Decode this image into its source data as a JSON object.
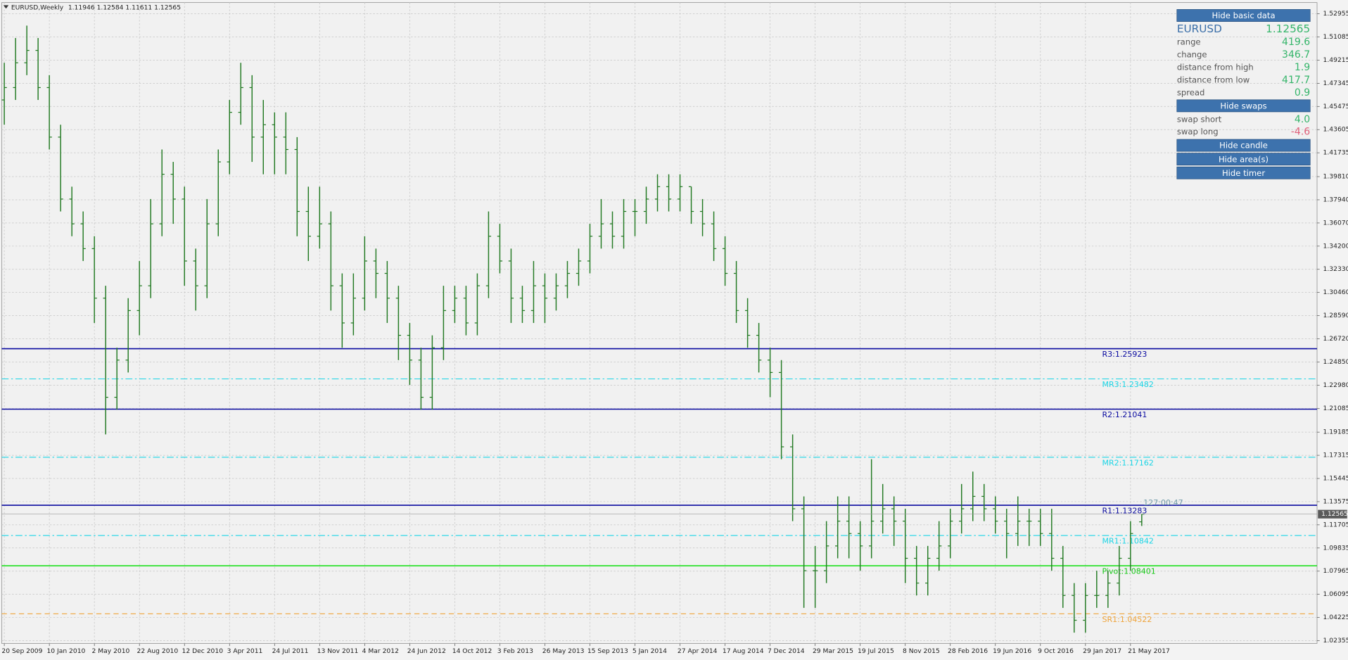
{
  "chart_data": {
    "type": "ohlc",
    "header": "EURUSD,Weekly",
    "color": "#237a23",
    "grid": true,
    "ylim": [
      1.0213,
      1.5386
    ],
    "yticks": [
      1.52955,
      1.51085,
      1.49215,
      1.47345,
      1.45475,
      1.43605,
      1.41735,
      {
        "value": 1.3981,
        "label": "1.39810"
      },
      {
        "value": 1.3794,
        "label": "1.37940"
      },
      {
        "value": 1.3607,
        "label": "1.36070"
      },
      {
        "value": 1.342,
        "label": "1.34200"
      },
      {
        "value": 1.3233,
        "label": "1.32330"
      },
      {
        "value": 1.3046,
        "label": "1.30460"
      },
      {
        "value": 1.2859,
        "label": "1.28590"
      },
      {
        "value": 1.2672,
        "label": "1.26720"
      },
      {
        "value": 1.2485,
        "label": "1.24850"
      },
      {
        "value": 1.2298,
        "label": "1.22980"
      },
      1.21085,
      1.19185,
      1.17315,
      1.15445,
      1.13575,
      1.11705,
      1.09835,
      1.07965,
      1.06095,
      1.04225,
      1.02355
    ],
    "categories": [
      "20 Sep 2009",
      null,
      null,
      null,
      "10 Jan 2010",
      null,
      null,
      null,
      "2 May 2010",
      null,
      null,
      null,
      "22 Aug 2010",
      null,
      null,
      null,
      "12 Dec 2010",
      null,
      null,
      null,
      "3 Apr 2011",
      null,
      null,
      null,
      "24 Jul 2011",
      null,
      null,
      null,
      "13 Nov 2011",
      null,
      null,
      null,
      "4 Mar 2012",
      null,
      null,
      null,
      "24 Jun 2012",
      null,
      null,
      null,
      "14 Oct 2012",
      null,
      null,
      null,
      "3 Feb 2013",
      null,
      null,
      null,
      "26 May 2013",
      null,
      null,
      null,
      "15 Sep 2013",
      null,
      null,
      null,
      "5 Jan 2014",
      null,
      null,
      null,
      "27 Apr 2014",
      null,
      null,
      null,
      "17 Aug 2014",
      null,
      null,
      null,
      "7 Dec 2014",
      null,
      null,
      null,
      "29 Mar 2015",
      null,
      null,
      null,
      "19 Jul 2015",
      null,
      null,
      null,
      "8 Nov 2015",
      null,
      null,
      null,
      "28 Feb 2016",
      null,
      null,
      null,
      "19 Jun 2016",
      null,
      null,
      null,
      "9 Oct 2016",
      null,
      null,
      null,
      "29 Jan 2017",
      null,
      null,
      null,
      "21 May 2017",
      null
    ],
    "ohlc": [
      [
        1.46,
        1.49,
        1.44,
        1.47
      ],
      [
        1.47,
        1.51,
        1.46,
        1.49
      ],
      [
        1.49,
        1.52,
        1.48,
        1.5
      ],
      [
        1.5,
        1.51,
        1.46,
        1.47
      ],
      [
        1.47,
        1.48,
        1.42,
        1.43
      ],
      [
        1.43,
        1.44,
        1.37,
        1.38
      ],
      [
        1.38,
        1.39,
        1.35,
        1.36
      ],
      [
        1.36,
        1.37,
        1.33,
        1.34
      ],
      [
        1.34,
        1.35,
        1.28,
        1.3
      ],
      [
        1.3,
        1.31,
        1.19,
        1.22
      ],
      [
        1.22,
        1.26,
        1.21,
        1.25
      ],
      [
        1.25,
        1.3,
        1.24,
        1.29
      ],
      [
        1.29,
        1.33,
        1.27,
        1.31
      ],
      [
        1.31,
        1.38,
        1.3,
        1.36
      ],
      [
        1.36,
        1.42,
        1.35,
        1.4
      ],
      [
        1.4,
        1.41,
        1.36,
        1.38
      ],
      [
        1.38,
        1.39,
        1.31,
        1.33
      ],
      [
        1.33,
        1.34,
        1.29,
        1.31
      ],
      [
        1.31,
        1.38,
        1.3,
        1.36
      ],
      [
        1.36,
        1.42,
        1.35,
        1.41
      ],
      [
        1.41,
        1.46,
        1.4,
        1.45
      ],
      [
        1.45,
        1.49,
        1.44,
        1.47
      ],
      [
        1.47,
        1.48,
        1.41,
        1.43
      ],
      [
        1.43,
        1.46,
        1.4,
        1.44
      ],
      [
        1.44,
        1.45,
        1.4,
        1.43
      ],
      [
        1.43,
        1.45,
        1.4,
        1.42
      ],
      [
        1.42,
        1.43,
        1.35,
        1.37
      ],
      [
        1.37,
        1.39,
        1.33,
        1.35
      ],
      [
        1.35,
        1.39,
        1.34,
        1.36
      ],
      [
        1.36,
        1.37,
        1.29,
        1.31
      ],
      [
        1.31,
        1.32,
        1.26,
        1.28
      ],
      [
        1.28,
        1.32,
        1.27,
        1.3
      ],
      [
        1.3,
        1.35,
        1.29,
        1.33
      ],
      [
        1.33,
        1.34,
        1.3,
        1.32
      ],
      [
        1.32,
        1.33,
        1.28,
        1.3
      ],
      [
        1.3,
        1.31,
        1.25,
        1.27
      ],
      [
        1.27,
        1.28,
        1.23,
        1.25
      ],
      [
        1.25,
        1.26,
        1.21,
        1.22
      ],
      [
        1.22,
        1.27,
        1.21,
        1.26
      ],
      [
        1.26,
        1.31,
        1.25,
        1.29
      ],
      [
        1.29,
        1.31,
        1.28,
        1.3
      ],
      [
        1.3,
        1.31,
        1.27,
        1.28
      ],
      [
        1.28,
        1.32,
        1.27,
        1.31
      ],
      [
        1.31,
        1.37,
        1.3,
        1.35
      ],
      [
        1.35,
        1.36,
        1.32,
        1.33
      ],
      [
        1.33,
        1.34,
        1.28,
        1.3
      ],
      [
        1.3,
        1.31,
        1.28,
        1.29
      ],
      [
        1.29,
        1.33,
        1.28,
        1.31
      ],
      [
        1.31,
        1.32,
        1.28,
        1.3
      ],
      [
        1.3,
        1.32,
        1.29,
        1.31
      ],
      [
        1.31,
        1.33,
        1.3,
        1.32
      ],
      [
        1.32,
        1.34,
        1.31,
        1.33
      ],
      [
        1.33,
        1.36,
        1.32,
        1.35
      ],
      [
        1.35,
        1.38,
        1.34,
        1.36
      ],
      [
        1.36,
        1.37,
        1.34,
        1.35
      ],
      [
        1.35,
        1.38,
        1.34,
        1.37
      ],
      [
        1.37,
        1.38,
        1.35,
        1.37
      ],
      [
        1.37,
        1.39,
        1.36,
        1.38
      ],
      [
        1.38,
        1.4,
        1.37,
        1.39
      ],
      [
        1.39,
        1.4,
        1.37,
        1.38
      ],
      [
        1.38,
        1.4,
        1.37,
        1.39
      ],
      [
        1.39,
        1.39,
        1.36,
        1.37
      ],
      [
        1.37,
        1.38,
        1.35,
        1.36
      ],
      [
        1.36,
        1.37,
        1.33,
        1.34
      ],
      [
        1.34,
        1.35,
        1.31,
        1.32
      ],
      [
        1.32,
        1.33,
        1.28,
        1.29
      ],
      [
        1.29,
        1.3,
        1.26,
        1.27
      ],
      [
        1.27,
        1.28,
        1.24,
        1.25
      ],
      [
        1.25,
        1.26,
        1.22,
        1.24
      ],
      [
        1.24,
        1.25,
        1.17,
        1.18
      ],
      [
        1.18,
        1.19,
        1.12,
        1.13
      ],
      [
        1.13,
        1.14,
        1.05,
        1.08
      ],
      [
        1.08,
        1.1,
        1.05,
        1.08
      ],
      [
        1.08,
        1.12,
        1.07,
        1.1
      ],
      [
        1.1,
        1.14,
        1.09,
        1.12
      ],
      [
        1.12,
        1.14,
        1.09,
        1.11
      ],
      [
        1.11,
        1.12,
        1.08,
        1.1
      ],
      [
        1.1,
        1.17,
        1.09,
        1.12
      ],
      [
        1.12,
        1.15,
        1.11,
        1.13
      ],
      [
        1.13,
        1.14,
        1.1,
        1.12
      ],
      [
        1.12,
        1.13,
        1.07,
        1.09
      ],
      [
        1.09,
        1.1,
        1.06,
        1.07
      ],
      [
        1.07,
        1.1,
        1.06,
        1.09
      ],
      [
        1.09,
        1.12,
        1.08,
        1.1
      ],
      [
        1.1,
        1.13,
        1.09,
        1.12
      ],
      [
        1.12,
        1.15,
        1.11,
        1.13
      ],
      [
        1.13,
        1.16,
        1.12,
        1.14
      ],
      [
        1.14,
        1.15,
        1.12,
        1.13
      ],
      [
        1.13,
        1.14,
        1.11,
        1.12
      ],
      [
        1.12,
        1.13,
        1.09,
        1.11
      ],
      [
        1.11,
        1.14,
        1.1,
        1.12
      ],
      [
        1.12,
        1.13,
        1.1,
        1.12
      ],
      [
        1.12,
        1.13,
        1.1,
        1.11
      ],
      [
        1.11,
        1.13,
        1.08,
        1.09
      ],
      [
        1.09,
        1.1,
        1.05,
        1.06
      ],
      [
        1.06,
        1.07,
        1.03,
        1.04
      ],
      [
        1.04,
        1.07,
        1.03,
        1.06
      ],
      [
        1.06,
        1.08,
        1.05,
        1.06
      ],
      [
        1.06,
        1.08,
        1.05,
        1.07
      ],
      [
        1.07,
        1.1,
        1.06,
        1.09
      ],
      [
        1.09,
        1.12,
        1.08,
        1.11
      ],
      [
        1.11946,
        1.12584,
        1.11611,
        1.12565
      ]
    ],
    "levels": [
      {
        "label": "R3:1.25923",
        "value": 1.25923,
        "color": "#0a0aa0",
        "text_color": "#0a0aa0",
        "style": "solid"
      },
      {
        "label": "MR3:1.23482",
        "value": 1.23482,
        "color": "#19d5e6",
        "text_color": "#19d5e6",
        "style": "dashdot"
      },
      {
        "label": "R2:1.21041",
        "value": 1.21041,
        "color": "#0a0aa0",
        "text_color": "#0a0aa0",
        "style": "solid"
      },
      {
        "label": "MR2:1.17162",
        "value": 1.17162,
        "color": "#19d5e6",
        "text_color": "#19d5e6",
        "style": "dashdot"
      },
      {
        "label": "R1:1.13283",
        "value": 1.13283,
        "color": "#0a0aa0",
        "text_color": "#0a0aa0",
        "style": "solid"
      },
      {
        "label": "MR1:1.10842",
        "value": 1.10842,
        "color": "#19d5e6",
        "text_color": "#19d5e6",
        "style": "dashdot"
      },
      {
        "label": "Pivot:1.08401",
        "value": 1.08401,
        "color": "#1ee01e",
        "text_color": "#14c814",
        "style": "solid"
      },
      {
        "label": "SR1:1.04522",
        "value": 1.04522,
        "color": "#f0a43a",
        "text_color": "#f0a43a",
        "style": "dashed"
      }
    ],
    "timer": "127:00:47"
  },
  "panel": {
    "buttons": [
      "Hide basic data",
      "Hide swaps",
      "Hide candle",
      "Hide area(s)",
      "Hide timer"
    ],
    "symbol": "EURUSD",
    "price": "1.12565",
    "rows": [
      {
        "label": "range",
        "value": "419.6"
      },
      {
        "label": "change",
        "value": "346.7"
      },
      {
        "label": "distance from high",
        "value": "1.9"
      },
      {
        "label": "distance from low",
        "value": "417.7"
      },
      {
        "label": "spread",
        "value": "0.9"
      }
    ],
    "swaps": [
      {
        "label": "swap short",
        "value": "4.0"
      },
      {
        "label": "swap long",
        "value": "-4.6"
      }
    ]
  }
}
